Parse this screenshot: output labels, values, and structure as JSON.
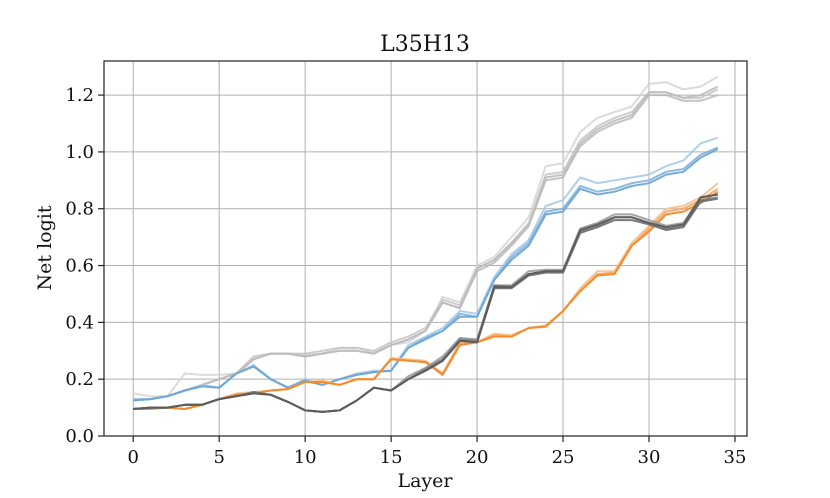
{
  "chart_data": {
    "type": "line",
    "title": "L35H13",
    "xlabel": "Layer",
    "ylabel": "Net logit",
    "xlim": [
      -1.7,
      35.7
    ],
    "ylim": [
      0.0,
      1.32
    ],
    "xticks": [
      0,
      5,
      10,
      15,
      20,
      25,
      30,
      35
    ],
    "yticks": [
      0.0,
      0.2,
      0.4,
      0.6,
      0.8,
      1.0,
      1.2
    ],
    "ytick_labels": [
      "0.0",
      "0.2",
      "0.4",
      "0.6",
      "0.8",
      "1.0",
      "1.2"
    ],
    "grid": true,
    "x": [
      0,
      1,
      2,
      3,
      4,
      5,
      6,
      7,
      8,
      9,
      10,
      11,
      12,
      13,
      14,
      15,
      16,
      17,
      18,
      19,
      20,
      21,
      22,
      23,
      24,
      25,
      26,
      27,
      28,
      29,
      30,
      31,
      32,
      33,
      34
    ],
    "series": [
      {
        "color": "#cfcfcf",
        "opacity": 0.75,
        "values": [
          0.15,
          0.14,
          0.14,
          0.22,
          0.215,
          0.215,
          0.22,
          0.27,
          0.29,
          0.29,
          0.285,
          0.29,
          0.31,
          0.31,
          0.295,
          0.32,
          0.33,
          0.37,
          0.49,
          0.47,
          0.6,
          0.63,
          0.7,
          0.77,
          0.95,
          0.96,
          1.07,
          1.12,
          1.14,
          1.16,
          1.24,
          1.245,
          1.22,
          1.23,
          1.265
        ]
      },
      {
        "color": "#c4c4c4",
        "opacity": 0.85,
        "values": [
          0.13,
          0.13,
          0.14,
          0.16,
          0.18,
          0.2,
          0.22,
          0.28,
          0.29,
          0.29,
          0.29,
          0.3,
          0.31,
          0.31,
          0.3,
          0.33,
          0.35,
          0.38,
          0.48,
          0.46,
          0.59,
          0.62,
          0.68,
          0.75,
          0.92,
          0.93,
          1.04,
          1.09,
          1.12,
          1.14,
          1.21,
          1.21,
          1.19,
          1.19,
          1.22
        ]
      },
      {
        "color": "#b8b8b8",
        "opacity": 0.85,
        "values": [
          0.13,
          0.13,
          0.14,
          0.16,
          0.18,
          0.2,
          0.22,
          0.27,
          0.29,
          0.29,
          0.28,
          0.29,
          0.3,
          0.3,
          0.29,
          0.32,
          0.34,
          0.37,
          0.47,
          0.45,
          0.58,
          0.61,
          0.67,
          0.74,
          0.9,
          0.91,
          1.02,
          1.07,
          1.1,
          1.12,
          1.2,
          1.2,
          1.18,
          1.18,
          1.2
        ]
      },
      {
        "color": "#bdbdbd",
        "opacity": 0.9,
        "values": [
          0.13,
          0.13,
          0.14,
          0.16,
          0.18,
          0.2,
          0.22,
          0.27,
          0.29,
          0.29,
          0.28,
          0.29,
          0.3,
          0.3,
          0.29,
          0.32,
          0.34,
          0.37,
          0.47,
          0.45,
          0.59,
          0.62,
          0.68,
          0.74,
          0.91,
          0.92,
          1.03,
          1.08,
          1.11,
          1.13,
          1.21,
          1.21,
          1.19,
          1.2,
          1.23
        ]
      },
      {
        "color": "#a8c9e6",
        "opacity": 0.9,
        "values": [
          0.13,
          0.13,
          0.14,
          0.16,
          0.18,
          0.17,
          0.22,
          0.25,
          0.2,
          0.17,
          0.2,
          0.18,
          0.2,
          0.22,
          0.23,
          0.23,
          0.32,
          0.35,
          0.38,
          0.44,
          0.43,
          0.56,
          0.64,
          0.69,
          0.81,
          0.83,
          0.91,
          0.89,
          0.9,
          0.91,
          0.92,
          0.95,
          0.97,
          1.03,
          1.05
        ]
      },
      {
        "color": "#7fb2dd",
        "opacity": 0.9,
        "values": [
          0.125,
          0.13,
          0.14,
          0.16,
          0.175,
          0.17,
          0.22,
          0.245,
          0.2,
          0.17,
          0.195,
          0.18,
          0.2,
          0.215,
          0.225,
          0.23,
          0.31,
          0.345,
          0.37,
          0.43,
          0.42,
          0.55,
          0.63,
          0.68,
          0.79,
          0.8,
          0.88,
          0.86,
          0.87,
          0.89,
          0.9,
          0.93,
          0.94,
          0.99,
          1.015
        ]
      },
      {
        "color": "#6fa6d6",
        "opacity": 0.95,
        "values": [
          0.125,
          0.13,
          0.14,
          0.16,
          0.175,
          0.17,
          0.22,
          0.245,
          0.2,
          0.17,
          0.195,
          0.18,
          0.2,
          0.215,
          0.225,
          0.23,
          0.31,
          0.34,
          0.37,
          0.42,
          0.42,
          0.55,
          0.62,
          0.67,
          0.78,
          0.79,
          0.87,
          0.85,
          0.86,
          0.88,
          0.89,
          0.92,
          0.93,
          0.98,
          1.01
        ]
      },
      {
        "color": "#f7c08a",
        "opacity": 0.9,
        "values": [
          0.095,
          0.1,
          0.1,
          0.095,
          0.11,
          0.13,
          0.15,
          0.155,
          0.16,
          0.165,
          0.19,
          0.195,
          0.18,
          0.2,
          0.2,
          0.275,
          0.27,
          0.265,
          0.22,
          0.33,
          0.33,
          0.36,
          0.355,
          0.38,
          0.39,
          0.44,
          0.52,
          0.58,
          0.58,
          0.68,
          0.74,
          0.8,
          0.81,
          0.84,
          0.89
        ]
      },
      {
        "color": "#f4a460",
        "opacity": 0.9,
        "values": [
          0.095,
          0.1,
          0.1,
          0.095,
          0.11,
          0.13,
          0.145,
          0.15,
          0.16,
          0.165,
          0.19,
          0.19,
          0.18,
          0.2,
          0.2,
          0.27,
          0.265,
          0.26,
          0.22,
          0.325,
          0.33,
          0.355,
          0.35,
          0.38,
          0.385,
          0.44,
          0.51,
          0.57,
          0.575,
          0.67,
          0.73,
          0.79,
          0.8,
          0.83,
          0.87
        ]
      },
      {
        "color": "#f28a2b",
        "opacity": 0.95,
        "values": [
          0.095,
          0.095,
          0.1,
          0.095,
          0.11,
          0.13,
          0.145,
          0.15,
          0.16,
          0.165,
          0.19,
          0.19,
          0.18,
          0.2,
          0.2,
          0.27,
          0.265,
          0.26,
          0.215,
          0.32,
          0.33,
          0.35,
          0.35,
          0.38,
          0.385,
          0.44,
          0.51,
          0.565,
          0.57,
          0.67,
          0.72,
          0.78,
          0.79,
          0.82,
          0.86
        ]
      },
      {
        "color": "#9a9a9a",
        "opacity": 0.9,
        "values": [
          0.095,
          0.1,
          0.1,
          0.11,
          0.11,
          0.13,
          0.14,
          0.155,
          0.145,
          0.12,
          0.09,
          0.085,
          0.09,
          0.125,
          0.17,
          0.16,
          0.21,
          0.24,
          0.28,
          0.345,
          0.34,
          0.53,
          0.53,
          0.58,
          0.585,
          0.585,
          0.73,
          0.75,
          0.78,
          0.78,
          0.76,
          0.74,
          0.75,
          0.84,
          0.85
        ]
      },
      {
        "color": "#7b7b7b",
        "opacity": 0.9,
        "values": [
          0.095,
          0.1,
          0.1,
          0.11,
          0.11,
          0.13,
          0.14,
          0.155,
          0.145,
          0.12,
          0.09,
          0.085,
          0.09,
          0.125,
          0.17,
          0.16,
          0.2,
          0.235,
          0.27,
          0.34,
          0.335,
          0.53,
          0.525,
          0.57,
          0.58,
          0.58,
          0.72,
          0.74,
          0.77,
          0.77,
          0.75,
          0.73,
          0.74,
          0.83,
          0.84
        ]
      },
      {
        "color": "#6a6a6a",
        "opacity": 0.9,
        "values": [
          0.095,
          0.1,
          0.1,
          0.11,
          0.11,
          0.13,
          0.14,
          0.15,
          0.145,
          0.12,
          0.09,
          0.085,
          0.09,
          0.125,
          0.17,
          0.16,
          0.2,
          0.23,
          0.265,
          0.335,
          0.33,
          0.52,
          0.52,
          0.565,
          0.575,
          0.575,
          0.715,
          0.735,
          0.76,
          0.76,
          0.745,
          0.725,
          0.735,
          0.825,
          0.835
        ]
      },
      {
        "color": "#5c5c5c",
        "opacity": 0.95,
        "values": [
          0.095,
          0.1,
          0.1,
          0.11,
          0.11,
          0.13,
          0.14,
          0.15,
          0.145,
          0.12,
          0.09,
          0.085,
          0.09,
          0.125,
          0.17,
          0.16,
          0.2,
          0.23,
          0.265,
          0.335,
          0.33,
          0.525,
          0.525,
          0.57,
          0.58,
          0.58,
          0.725,
          0.745,
          0.77,
          0.77,
          0.75,
          0.735,
          0.745,
          0.84,
          0.85
        ]
      }
    ]
  }
}
